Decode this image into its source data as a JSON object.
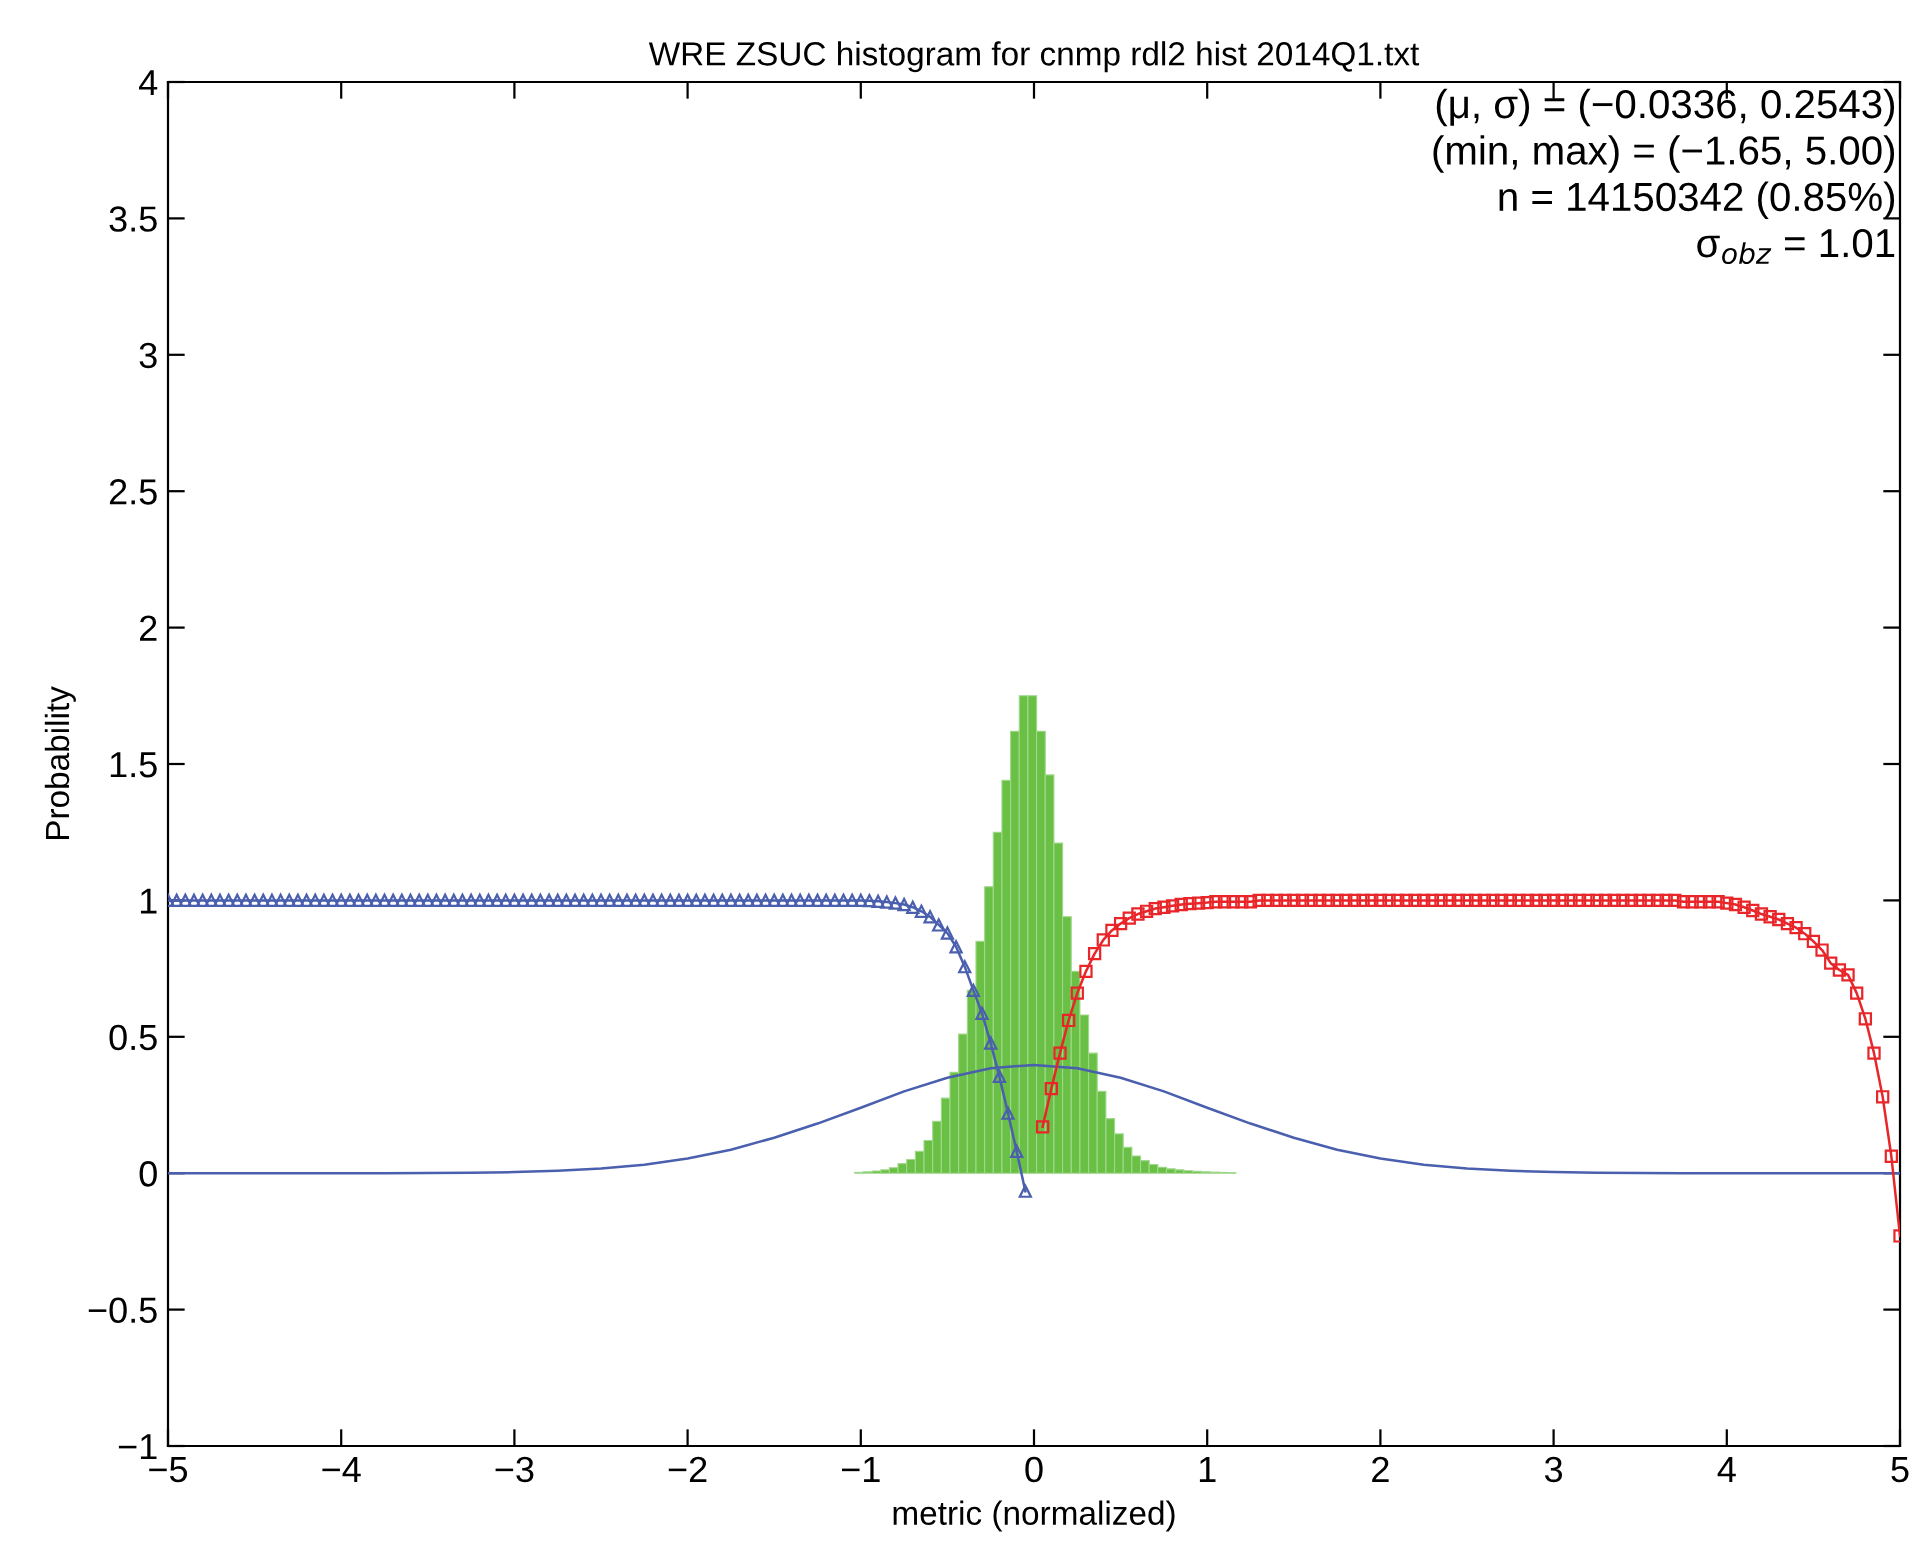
{
  "chart_data": {
    "type": "line",
    "title": "WRE ZSUC histogram for cnmp rdl2 hist 2014Q1.txt",
    "xlabel": "metric (normalized)",
    "ylabel": "Probability",
    "annotations": [
      "(μ, σ) = (−0.0336, 0.2543)",
      "(min, max) = (−1.65, 5.00)",
      "n = 14150342 (0.85%)",
      "σ$_{obz}$ = 1.01"
    ],
    "xlim": [
      -5,
      5
    ],
    "xticks": [
      {
        "value": -5,
        "label": "−5"
      },
      {
        "value": -4,
        "label": "−4"
      },
      {
        "value": -3,
        "label": "−3"
      },
      {
        "value": -2,
        "label": "−2"
      },
      {
        "value": -1,
        "label": "−1"
      },
      0,
      1,
      2,
      3,
      4,
      5
    ],
    "ylim": [
      -1,
      4
    ],
    "yticks": [
      {
        "value": -1,
        "label": "−1"
      },
      {
        "value": -0.5,
        "label": "−0.5"
      },
      0,
      0.5,
      1,
      1.5,
      2,
      2.5,
      3,
      3.5,
      4
    ],
    "grid": false,
    "legend": false,
    "series": [
      {
        "type": "histogram",
        "color": "#6abf45",
        "bins": [
          -1.035,
          -0.985,
          -0.935,
          -0.885,
          -0.835,
          -0.785,
          -0.735,
          -0.685,
          -0.635,
          -0.585,
          -0.535,
          -0.485,
          -0.435,
          -0.385,
          -0.335,
          -0.285,
          -0.235,
          -0.185,
          -0.135,
          -0.085,
          -0.035,
          0.015,
          0.065,
          0.115,
          0.165,
          0.215,
          0.265,
          0.315,
          0.365,
          0.415,
          0.465,
          0.515,
          0.565,
          0.615,
          0.665,
          0.715,
          0.765,
          0.815,
          0.865,
          0.915,
          0.965,
          1.015,
          1.065,
          1.115,
          1.165
        ],
        "values": [
          0.003,
          0.005,
          0.008,
          0.012,
          0.02,
          0.035,
          0.05,
          0.08,
          0.12,
          0.19,
          0.275,
          0.37,
          0.51,
          0.67,
          0.85,
          1.05,
          1.25,
          1.44,
          1.62,
          1.75,
          1.75,
          1.62,
          1.46,
          1.21,
          0.94,
          0.74,
          0.58,
          0.44,
          0.3,
          0.2,
          0.144,
          0.095,
          0.063,
          0.046,
          0.032,
          0.022,
          0.016,
          0.012,
          0.009,
          0.007,
          0.005,
          0.004,
          0.003,
          0.002
        ]
      },
      {
        "color": "#4a5fae",
        "marker": "none",
        "x": [
          -5,
          -4.75,
          -4.5,
          -4.25,
          -4,
          -3.75,
          -3.5,
          -3.25,
          -3,
          -2.75,
          -2.5,
          -2.25,
          -2,
          -1.75,
          -1.5,
          -1.25,
          -1,
          -0.75,
          -0.5,
          -0.25,
          0,
          0.25,
          0.5,
          0.75,
          1,
          1.25,
          1.5,
          1.75,
          2,
          2.25,
          2.5,
          2.75,
          3,
          3.25,
          3.5,
          3.75,
          4,
          4.25,
          4.5,
          4.75,
          5
        ],
        "values": [
          0,
          0,
          0,
          0,
          0,
          0,
          0.001,
          0.002,
          0.004,
          0.009,
          0.017,
          0.031,
          0.054,
          0.086,
          0.13,
          0.182,
          0.24,
          0.3,
          0.35,
          0.385,
          0.397,
          0.385,
          0.35,
          0.3,
          0.24,
          0.182,
          0.13,
          0.086,
          0.054,
          0.031,
          0.017,
          0.009,
          0.004,
          0.002,
          0.001,
          0,
          0,
          0,
          0,
          0,
          0
        ]
      },
      {
        "color": "#4a5fae",
        "marker": "triangle",
        "x": [
          -5,
          -4.95,
          -4.9,
          -4.85,
          -4.8,
          -4.75,
          -4.7,
          -4.65,
          -4.6,
          -4.55,
          -4.5,
          -4.45,
          -4.4,
          -4.35,
          -4.3,
          -4.25,
          -4.2,
          -4.15,
          -4.1,
          -4.05,
          -4,
          -3.95,
          -3.9,
          -3.85,
          -3.8,
          -3.75,
          -3.7,
          -3.65,
          -3.6,
          -3.55,
          -3.5,
          -3.45,
          -3.4,
          -3.35,
          -3.3,
          -3.25,
          -3.2,
          -3.15,
          -3.1,
          -3.05,
          -3,
          -2.95,
          -2.9,
          -2.85,
          -2.8,
          -2.75,
          -2.7,
          -2.65,
          -2.6,
          -2.55,
          -2.5,
          -2.45,
          -2.4,
          -2.35,
          -2.3,
          -2.25,
          -2.2,
          -2.15,
          -2.1,
          -2.05,
          -2,
          -1.95,
          -1.9,
          -1.85,
          -1.8,
          -1.75,
          -1.7,
          -1.65,
          -1.6,
          -1.55,
          -1.5,
          -1.45,
          -1.4,
          -1.35,
          -1.3,
          -1.25,
          -1.2,
          -1.15,
          -1.1,
          -1.05,
          -1,
          -0.95,
          -0.9,
          -0.85,
          -0.8,
          -0.75,
          -0.7,
          -0.65,
          -0.6,
          -0.55,
          -0.5,
          -0.45,
          -0.4,
          -0.35,
          -0.3,
          -0.25,
          -0.2,
          -0.15,
          -0.1,
          -0.05
        ],
        "values": [
          1,
          1,
          1,
          1,
          1,
          1,
          1,
          1,
          1,
          1,
          1,
          1,
          1,
          1,
          1,
          1,
          1,
          1,
          1,
          1,
          1,
          1,
          1,
          1,
          1,
          1,
          1,
          1,
          1,
          1,
          1,
          1,
          1,
          1,
          1,
          1,
          1,
          1,
          1,
          1,
          1,
          1,
          1,
          1,
          1,
          1,
          1,
          1,
          1,
          1,
          1,
          1,
          1,
          1,
          1,
          1,
          1,
          1,
          1,
          1,
          1,
          1,
          1,
          1,
          1,
          1,
          1,
          1,
          1,
          1,
          1,
          1,
          1,
          1,
          1,
          1,
          1,
          1,
          1,
          1,
          1,
          0.999,
          0.997,
          0.994,
          0.99,
          0.985,
          0.975,
          0.96,
          0.94,
          0.91,
          0.88,
          0.83,
          0.757,
          0.67,
          0.586,
          0.477,
          0.355,
          0.22,
          0.08,
          -0.066
        ]
      },
      {
        "color": "#e8262a",
        "marker": "square",
        "x": [
          0.05,
          0.1,
          0.15,
          0.2,
          0.25,
          0.3,
          0.35,
          0.4,
          0.45,
          0.5,
          0.55,
          0.6,
          0.65,
          0.7,
          0.75,
          0.8,
          0.85,
          0.9,
          0.95,
          1,
          1.05,
          1.1,
          1.15,
          1.2,
          1.25,
          1.3,
          1.35,
          1.4,
          1.45,
          1.5,
          1.55,
          1.6,
          1.65,
          1.7,
          1.75,
          1.8,
          1.85,
          1.9,
          1.95,
          2,
          2.05,
          2.1,
          2.15,
          2.2,
          2.25,
          2.3,
          2.35,
          2.4,
          2.45,
          2.5,
          2.55,
          2.6,
          2.65,
          2.7,
          2.75,
          2.8,
          2.85,
          2.9,
          2.95,
          3,
          3.05,
          3.1,
          3.15,
          3.2,
          3.25,
          3.3,
          3.35,
          3.4,
          3.45,
          3.5,
          3.55,
          3.6,
          3.65,
          3.7,
          3.75,
          3.8,
          3.85,
          3.9,
          3.95,
          4,
          4.05,
          4.1,
          4.15,
          4.2,
          4.25,
          4.3,
          4.35,
          4.4,
          4.45,
          4.5,
          4.55,
          4.6,
          4.65,
          4.7,
          4.75,
          4.8,
          4.85,
          4.9,
          4.95,
          5
        ],
        "values": [
          0.17,
          0.31,
          0.44,
          0.56,
          0.66,
          0.74,
          0.805,
          0.855,
          0.89,
          0.915,
          0.935,
          0.95,
          0.96,
          0.97,
          0.975,
          0.98,
          0.985,
          0.988,
          0.99,
          0.992,
          0.995,
          0.995,
          0.995,
          0.995,
          0.995,
          1,
          1,
          1,
          1,
          1,
          1,
          1,
          1,
          1,
          1,
          1,
          1,
          1,
          1,
          1,
          1,
          1,
          1,
          1,
          1,
          1,
          1,
          1,
          1,
          1,
          1,
          1,
          1,
          1,
          1,
          1,
          1,
          1,
          1,
          1,
          1,
          1,
          1,
          1,
          1,
          1,
          1,
          1,
          1,
          1,
          1,
          1,
          1,
          1,
          0.995,
          0.995,
          0.995,
          0.995,
          0.995,
          0.99,
          0.985,
          0.975,
          0.963,
          0.95,
          0.94,
          0.93,
          0.915,
          0.9,
          0.878,
          0.85,
          0.818,
          0.77,
          0.745,
          0.727,
          0.66,
          0.566,
          0.44,
          0.28,
          0.062,
          -0.23
        ]
      }
    ]
  }
}
